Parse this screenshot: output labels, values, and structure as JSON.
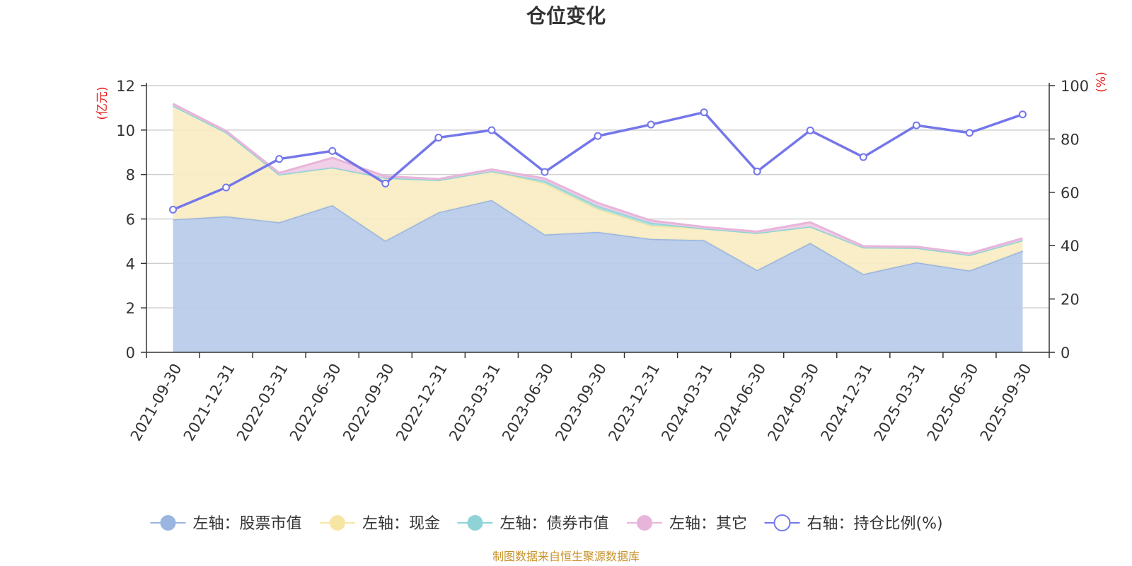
{
  "chart_data": {
    "type": "area",
    "title": "仓位变化",
    "x": [
      "2021-09-30",
      "2021-12-31",
      "2022-03-31",
      "2022-06-30",
      "2022-09-30",
      "2022-12-31",
      "2023-03-31",
      "2023-06-30",
      "2023-09-30",
      "2023-12-31",
      "2024-03-31",
      "2024-06-30",
      "2024-09-30",
      "2024-12-31",
      "2025-03-31",
      "2025-06-30",
      "2025-09-30"
    ],
    "left_axis": {
      "label": "(亿元)",
      "ylim": [
        0,
        12
      ],
      "ticks": [
        0,
        2,
        4,
        6,
        8,
        10,
        12
      ]
    },
    "right_axis": {
      "label": "(%)",
      "ylim": [
        0,
        100
      ],
      "ticks": [
        0,
        20,
        40,
        60,
        80,
        100
      ]
    },
    "series": [
      {
        "name": "左轴：股票市值",
        "axis": "left",
        "kind": "stacked-area",
        "color": "#9ab5df",
        "fill": "#b8cbe9",
        "values": [
          5.98,
          6.12,
          5.85,
          6.62,
          5.02,
          6.3,
          6.85,
          5.3,
          5.42,
          5.1,
          5.05,
          3.7,
          4.92,
          3.52,
          4.05,
          3.68,
          4.57
        ]
      },
      {
        "name": "左轴：现金",
        "axis": "left",
        "kind": "stacked-area",
        "color": "#f7e6a3",
        "fill": "#f9edc2",
        "values": [
          5.12,
          3.78,
          2.15,
          1.7,
          2.83,
          1.45,
          1.3,
          2.3,
          1.03,
          0.6,
          0.52,
          1.67,
          0.74,
          1.2,
          0.65,
          0.7,
          0.47
        ]
      },
      {
        "name": "左轴：债券市值",
        "axis": "left",
        "kind": "stacked-area",
        "color": "#8fd3d6",
        "fill": "#a9dfe1",
        "values": [
          0,
          0,
          0,
          0,
          0,
          0,
          0,
          0.12,
          0.13,
          0.13,
          0,
          0,
          0,
          0,
          0,
          0,
          0
        ]
      },
      {
        "name": "左轴：其它",
        "axis": "left",
        "kind": "stacked-area",
        "color": "#e8b5da",
        "fill": "#efcde6",
        "values": [
          0.08,
          0.06,
          0.07,
          0.43,
          0.07,
          0.05,
          0.08,
          0.1,
          0.14,
          0.1,
          0.07,
          0.06,
          0.19,
          0.06,
          0.05,
          0.07,
          0.09
        ]
      },
      {
        "name": "右轴：持仓比例(%)",
        "axis": "right",
        "kind": "line",
        "color": "#7477ea",
        "values": [
          53.5,
          61.8,
          72.5,
          75.5,
          63.3,
          80.5,
          83.3,
          67.6,
          81.1,
          85.4,
          90.0,
          67.8,
          83.2,
          73.2,
          85.1,
          82.3,
          89.2
        ]
      }
    ],
    "legend_position": "bottom-center",
    "grid": true
  },
  "footer": {
    "source": "制图数据来自恒生聚源数据库"
  }
}
